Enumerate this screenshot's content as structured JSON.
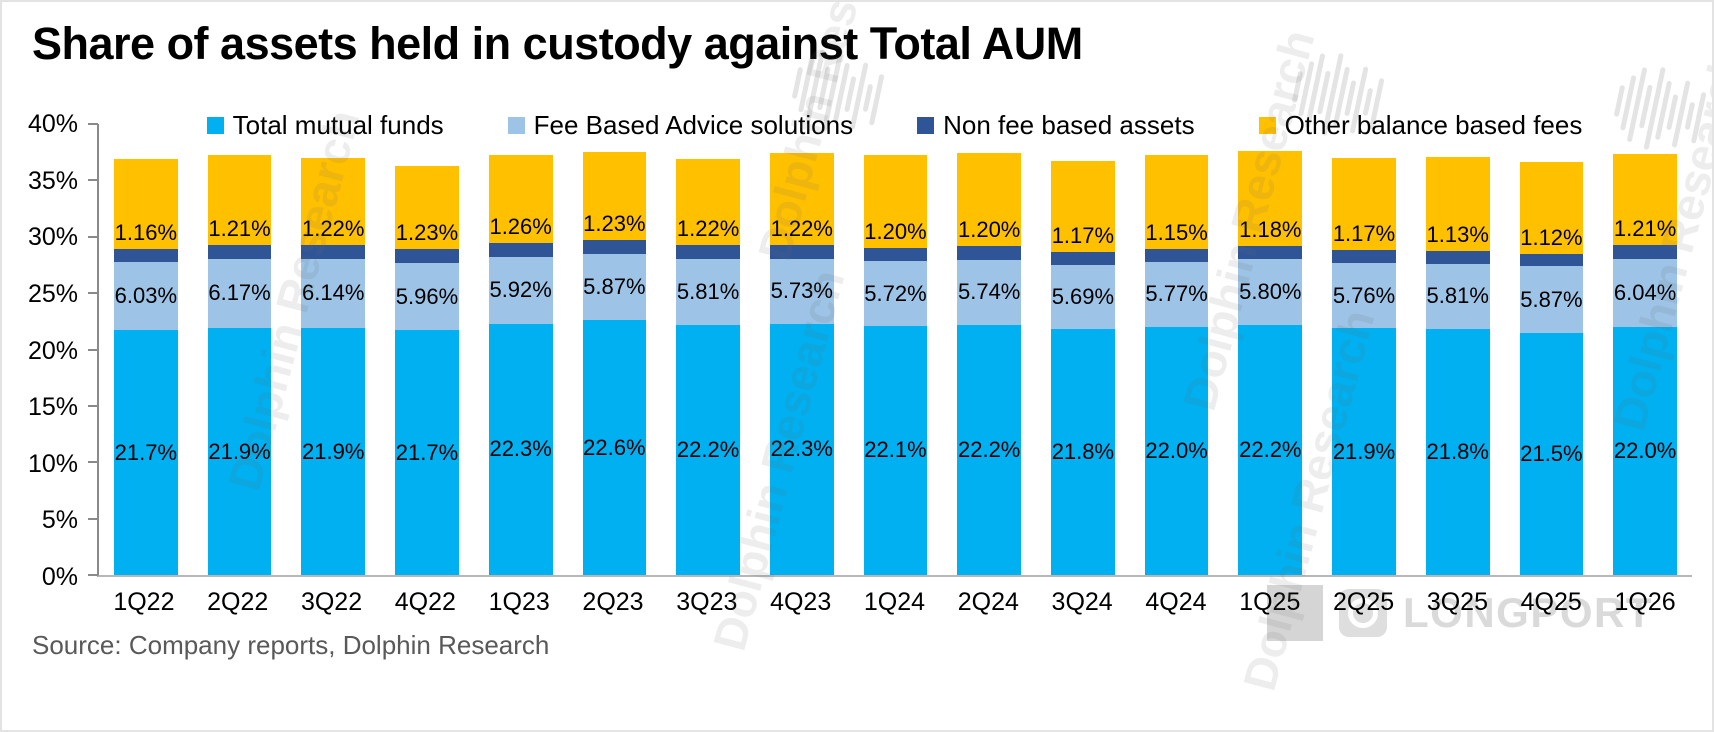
{
  "header": {
    "title": "Share of assets held in custody against Total AUM"
  },
  "footer": {
    "source": "Source:  Company reports, Dolphin Research",
    "brand": "LONGPORT"
  },
  "watermark": {
    "text": "Dolphin Research"
  },
  "chart_data": {
    "type": "bar",
    "stacked": true,
    "title": "Share of assets held in custody against Total AUM",
    "legend_position": "top",
    "grid": false,
    "ylim": [
      0,
      40
    ],
    "yticks": [
      "0%",
      "5%",
      "10%",
      "15%",
      "20%",
      "25%",
      "30%",
      "35%",
      "40%"
    ],
    "categories": [
      "1Q22",
      "2Q22",
      "3Q22",
      "4Q22",
      "1Q23",
      "2Q23",
      "3Q23",
      "4Q23",
      "1Q24",
      "2Q24",
      "3Q24",
      "4Q24",
      "1Q25",
      "2Q25",
      "3Q25",
      "4Q25",
      "1Q26"
    ],
    "series": [
      {
        "name": "Total mutual funds",
        "color": "#00B0F0",
        "label_placement": "center",
        "values": [
          21.7,
          21.9,
          21.9,
          21.7,
          22.3,
          22.6,
          22.2,
          22.3,
          22.1,
          22.2,
          21.8,
          22.0,
          22.2,
          21.9,
          21.8,
          21.5,
          22.0
        ],
        "labels": [
          "21.7%",
          "21.9%",
          "21.9%",
          "21.7%",
          "22.3%",
          "22.6%",
          "22.2%",
          "22.3%",
          "22.1%",
          "22.2%",
          "21.8%",
          "22.0%",
          "22.2%",
          "21.9%",
          "21.8%",
          "21.5%",
          "22.0%"
        ]
      },
      {
        "name": "Fee Based Advice solutions",
        "color": "#9DC3E6",
        "label_placement": "center",
        "values": [
          6.03,
          6.17,
          6.14,
          5.96,
          5.92,
          5.87,
          5.81,
          5.73,
          5.72,
          5.74,
          5.69,
          5.77,
          5.8,
          5.76,
          5.81,
          5.87,
          6.04
        ],
        "labels": [
          "6.03%",
          "6.17%",
          "6.14%",
          "5.96%",
          "5.92%",
          "5.87%",
          "5.81%",
          "5.73%",
          "5.72%",
          "5.74%",
          "5.69%",
          "5.77%",
          "5.80%",
          "5.76%",
          "5.81%",
          "5.87%",
          "6.04%"
        ]
      },
      {
        "name": "Non fee based assets",
        "color": "#2F5597",
        "label_placement": "above",
        "values": [
          1.16,
          1.21,
          1.22,
          1.23,
          1.26,
          1.23,
          1.22,
          1.22,
          1.2,
          1.2,
          1.17,
          1.15,
          1.18,
          1.17,
          1.13,
          1.12,
          1.21
        ],
        "labels": [
          "1.16%",
          "1.21%",
          "1.22%",
          "1.23%",
          "1.26%",
          "1.23%",
          "1.22%",
          "1.22%",
          "1.20%",
          "1.20%",
          "1.17%",
          "1.15%",
          "1.18%",
          "1.17%",
          "1.13%",
          "1.12%",
          "1.21%"
        ]
      },
      {
        "name": "Other balance based fees",
        "color": "#FFC000",
        "label_placement": "none",
        "values_estimated": true,
        "values": [
          8.0,
          8.0,
          7.7,
          7.4,
          7.8,
          7.8,
          7.7,
          8.2,
          8.2,
          8.3,
          8.1,
          8.3,
          8.4,
          8.2,
          8.3,
          8.1,
          8.1
        ],
        "labels": null
      }
    ]
  }
}
